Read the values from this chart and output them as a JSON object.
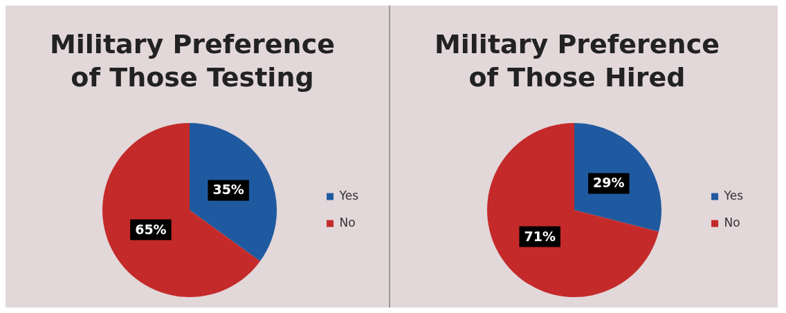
{
  "chart_data": [
    {
      "type": "pie",
      "title": "Military Preference of Those Testing",
      "categories": [
        "Yes",
        "No"
      ],
      "values": [
        35,
        65
      ],
      "colors": [
        "#1f5aa0",
        "#c42a2a"
      ],
      "value_labels": [
        "35%",
        "65%"
      ],
      "legend": "right"
    },
    {
      "type": "pie",
      "title": "Military Preference of Those Hired",
      "categories": [
        "Yes",
        "No"
      ],
      "values": [
        29,
        71
      ],
      "colors": [
        "#1f5aa0",
        "#c42a2a"
      ],
      "value_labels": [
        "29%",
        "71%"
      ],
      "legend": "right"
    }
  ]
}
